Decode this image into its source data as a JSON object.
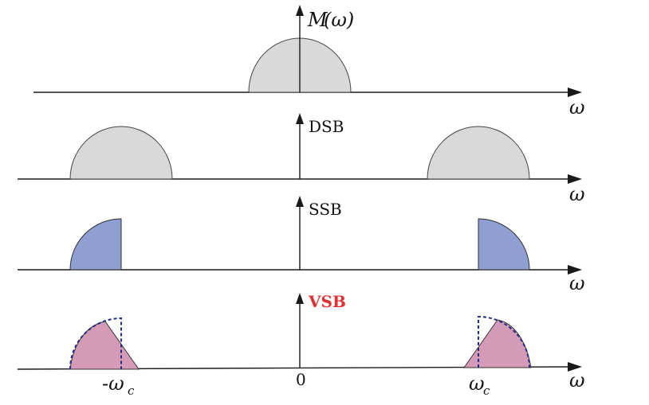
{
  "panels": {
    "baseband": {
      "label_main": "M",
      "label_paren": "(ω)"
    },
    "dsb": {
      "label": "DSB"
    },
    "ssb": {
      "label": "SSB"
    },
    "vsb": {
      "label": "VSB"
    }
  },
  "axis_label": "ω",
  "ticks": {
    "neg_carrier": "-ω",
    "neg_carrier_sub": "c",
    "zero": "0",
    "pos_carrier": "ω",
    "pos_carrier_sub": "c"
  },
  "colors": {
    "baseband_fill": "#d9d9d9",
    "ssb_fill": "#8f9fd2",
    "vsb_fill": "#d59ab5",
    "vsb_label": "#e03030",
    "dashed_outline": "#1f2e8a"
  }
}
